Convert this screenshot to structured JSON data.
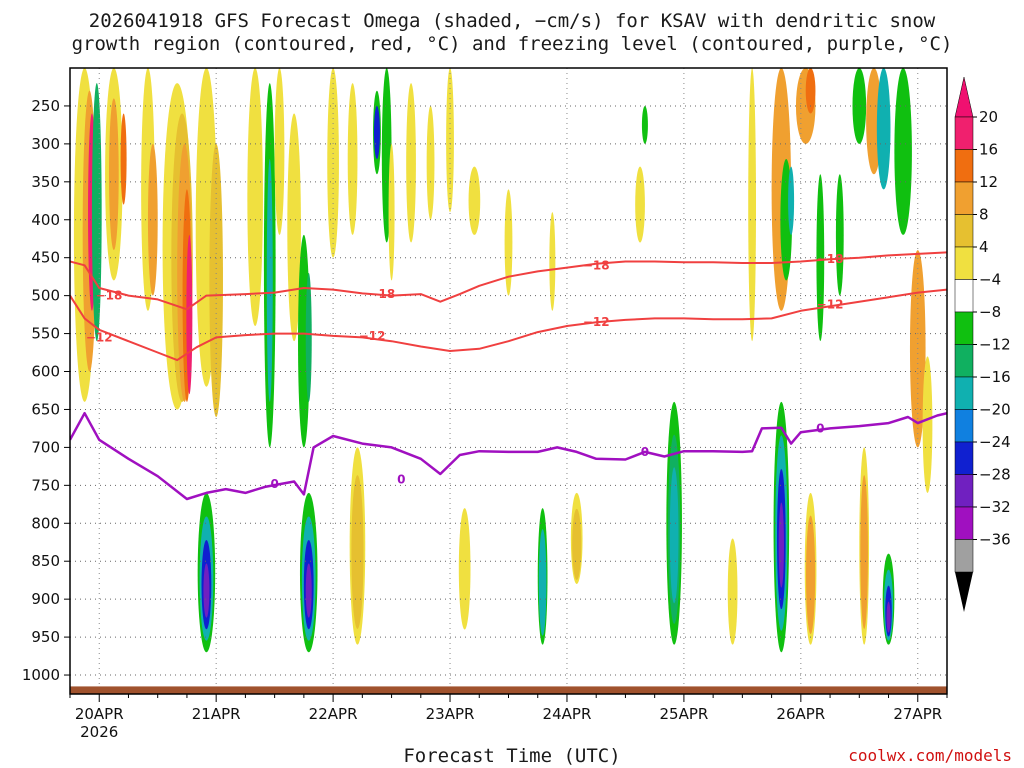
{
  "chart_data": {
    "type": "heatmap",
    "title_line1": "2026041918 GFS Forecast Omega (shaded, −cm/s) for KSAV with dendritic snow",
    "title_line2": "growth region (contoured, red, °C) and freezing level (contoured, purple, °C)",
    "xlabel": "Forecast Time (UTC)",
    "credit": "coolwx.com/models",
    "x_ticks": [
      "20APR",
      "21APR",
      "22APR",
      "23APR",
      "24APR",
      "25APR",
      "26APR",
      "27APR"
    ],
    "x_tick_hours": [
      6,
      30,
      54,
      78,
      102,
      126,
      150,
      174
    ],
    "x_year_label": "2026",
    "xlim_hours": [
      0,
      180
    ],
    "y_ticks": [
      250,
      300,
      350,
      400,
      450,
      500,
      550,
      600,
      650,
      700,
      750,
      800,
      850,
      900,
      950,
      1000
    ],
    "ylim_hpa": [
      200,
      1025
    ],
    "surface_hpa": 1015,
    "colorbar": {
      "labels": [
        "20",
        "16",
        "12",
        "8",
        "4",
        "−4",
        "−8",
        "−12",
        "−16",
        "−20",
        "−24",
        "−28",
        "−32",
        "−36"
      ],
      "colors": [
        "#f0206e",
        "#f06e10",
        "#f0a030",
        "#e6c030",
        "#f0e040",
        "#ffffff",
        "#10c010",
        "#10b060",
        "#10b0b0",
        "#1080e0",
        "#1020d0",
        "#7020c0",
        "#a010c0",
        "#a0a0a0"
      ],
      "top_arrow_color": "#f01070",
      "bottom_arrow_color": "#000000"
    },
    "snow_growth_contours": [
      {
        "name": "-18",
        "label": "−18",
        "color": "#f04040",
        "points": [
          [
            0,
            455
          ],
          [
            3,
            460
          ],
          [
            6,
            490
          ],
          [
            12,
            500
          ],
          [
            18,
            505
          ],
          [
            24,
            518
          ],
          [
            28,
            500
          ],
          [
            36,
            498
          ],
          [
            42,
            496
          ],
          [
            48,
            490
          ],
          [
            54,
            492
          ],
          [
            60,
            497
          ],
          [
            66,
            500
          ],
          [
            72,
            498
          ],
          [
            76,
            508
          ],
          [
            80,
            498
          ],
          [
            84,
            487
          ],
          [
            90,
            475
          ],
          [
            96,
            468
          ],
          [
            102,
            463
          ],
          [
            108,
            458
          ],
          [
            114,
            455
          ],
          [
            120,
            455
          ],
          [
            126,
            456
          ],
          [
            132,
            456
          ],
          [
            138,
            457
          ],
          [
            144,
            457
          ],
          [
            150,
            455
          ],
          [
            156,
            452
          ],
          [
            162,
            450
          ],
          [
            168,
            447
          ],
          [
            174,
            445
          ],
          [
            180,
            443
          ]
        ],
        "label_positions": [
          [
            8,
            500
          ],
          [
            64,
            498
          ],
          [
            108,
            460
          ],
          [
            156,
            452
          ]
        ]
      },
      {
        "name": "-12",
        "label": "−12",
        "color": "#f04040",
        "points": [
          [
            0,
            500
          ],
          [
            3,
            530
          ],
          [
            6,
            545
          ],
          [
            12,
            560
          ],
          [
            18,
            575
          ],
          [
            22,
            585
          ],
          [
            26,
            568
          ],
          [
            30,
            555
          ],
          [
            36,
            552
          ],
          [
            42,
            550
          ],
          [
            48,
            550
          ],
          [
            54,
            553
          ],
          [
            60,
            555
          ],
          [
            66,
            560
          ],
          [
            72,
            567
          ],
          [
            78,
            573
          ],
          [
            84,
            570
          ],
          [
            90,
            560
          ],
          [
            96,
            548
          ],
          [
            102,
            540
          ],
          [
            108,
            535
          ],
          [
            114,
            532
          ],
          [
            120,
            530
          ],
          [
            126,
            530
          ],
          [
            132,
            531
          ],
          [
            138,
            531
          ],
          [
            144,
            530
          ],
          [
            150,
            520
          ],
          [
            156,
            514
          ],
          [
            162,
            508
          ],
          [
            168,
            502
          ],
          [
            174,
            496
          ],
          [
            180,
            492
          ]
        ],
        "label_positions": [
          [
            6,
            555
          ],
          [
            62,
            553
          ],
          [
            108,
            535
          ],
          [
            156,
            512
          ]
        ]
      }
    ],
    "freezing_level_contour": {
      "name": "0",
      "label": "0",
      "color": "#a010c0",
      "points": [
        [
          0,
          690
        ],
        [
          3,
          655
        ],
        [
          6,
          690
        ],
        [
          12,
          715
        ],
        [
          18,
          738
        ],
        [
          24,
          768
        ],
        [
          28,
          760
        ],
        [
          32,
          755
        ],
        [
          36,
          760
        ],
        [
          40,
          752
        ],
        [
          46,
          745
        ],
        [
          48,
          762
        ],
        [
          50,
          700
        ],
        [
          54,
          685
        ],
        [
          60,
          695
        ],
        [
          66,
          700
        ],
        [
          72,
          715
        ],
        [
          76,
          735
        ],
        [
          80,
          710
        ],
        [
          84,
          705
        ],
        [
          90,
          706
        ],
        [
          96,
          706
        ],
        [
          100,
          700
        ],
        [
          104,
          706
        ],
        [
          108,
          715
        ],
        [
          114,
          716
        ],
        [
          118,
          706
        ],
        [
          122,
          712
        ],
        [
          126,
          705
        ],
        [
          132,
          705
        ],
        [
          138,
          706
        ],
        [
          140,
          705
        ],
        [
          142,
          675
        ],
        [
          146,
          674
        ],
        [
          148,
          695
        ],
        [
          150,
          680
        ],
        [
          156,
          675
        ],
        [
          162,
          672
        ],
        [
          168,
          668
        ],
        [
          172,
          660
        ],
        [
          174,
          668
        ],
        [
          178,
          658
        ],
        [
          180,
          655
        ]
      ],
      "label_positions": [
        [
          42,
          748
        ],
        [
          68,
          742
        ],
        [
          118,
          706
        ],
        [
          154,
          675
        ]
      ]
    }
  }
}
